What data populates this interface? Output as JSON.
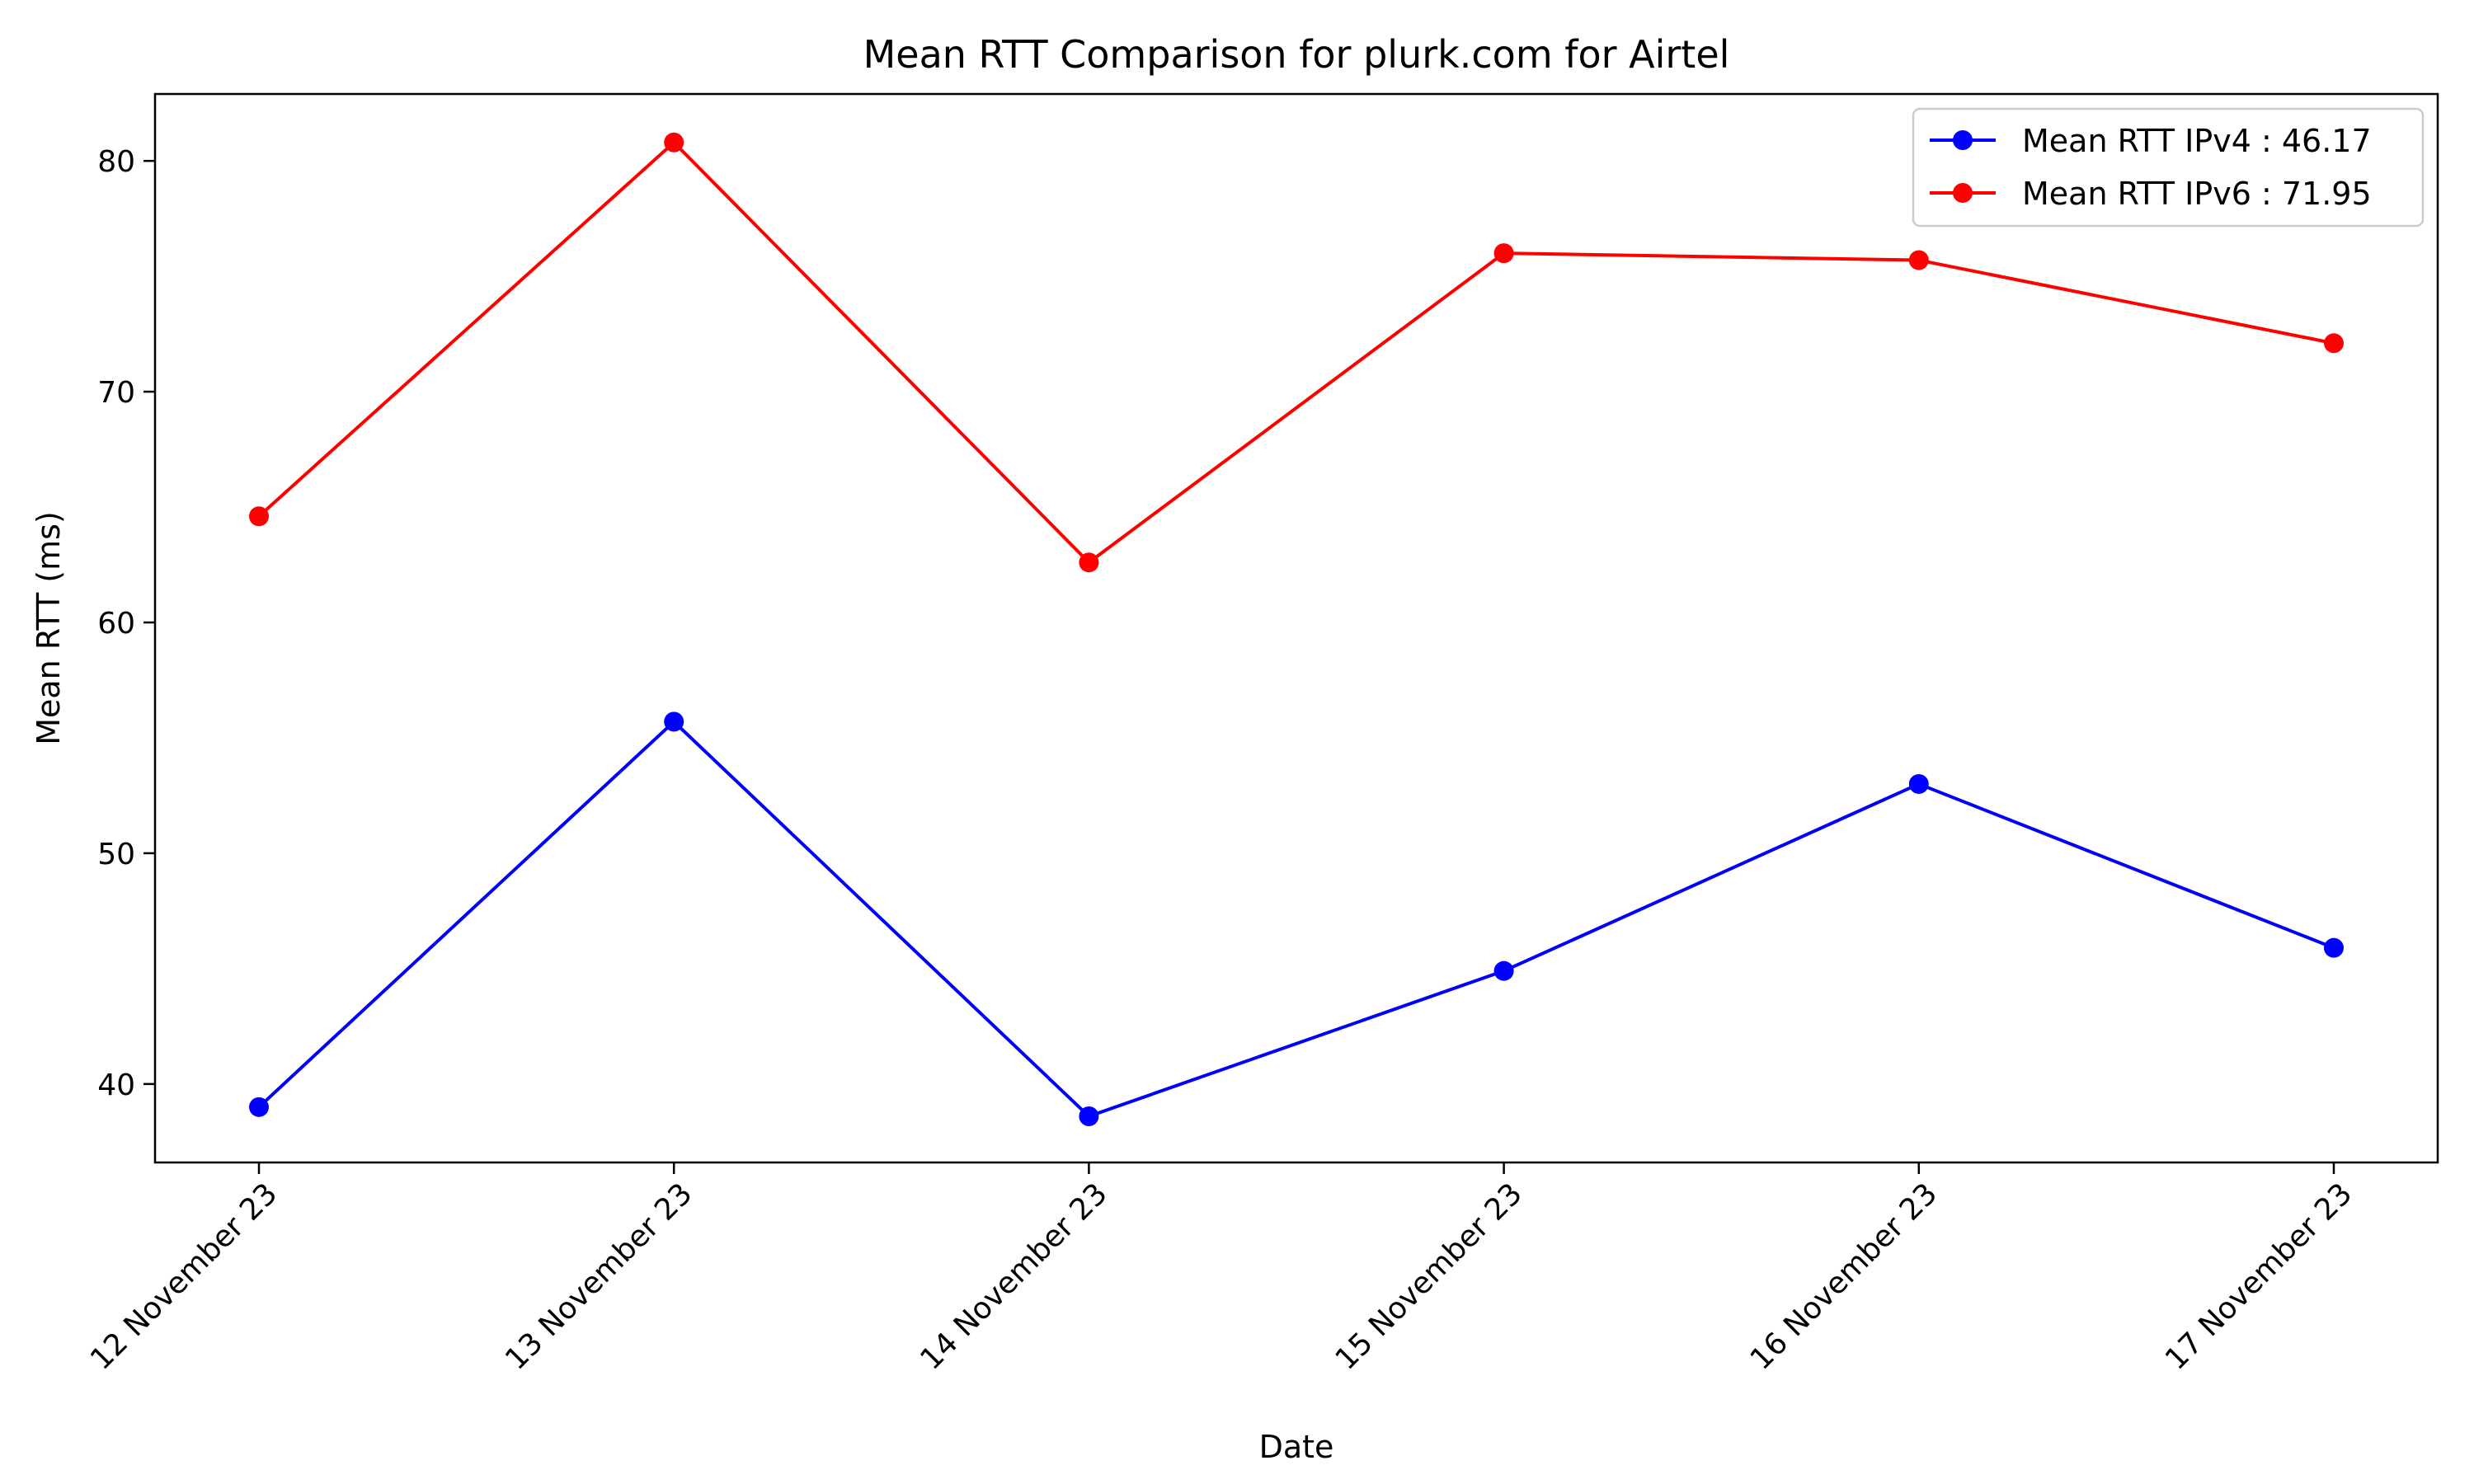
{
  "chart_data": {
    "type": "line",
    "title": "Mean RTT Comparison for plurk.com for Airtel",
    "xlabel": "Date",
    "ylabel": "Mean RTT (ms)",
    "categories": [
      "12 November 23",
      "13 November 23",
      "14 November 23",
      "15 November 23",
      "16 November 23",
      "17 November 23"
    ],
    "ylim": [
      36.6,
      82.9
    ],
    "yticks": [
      40,
      50,
      60,
      70,
      80
    ],
    "grid": false,
    "legend_position": "top-right",
    "series": [
      {
        "name": "Mean RTT IPv4 : 46.17",
        "color": "#0000ff",
        "marker": "circle",
        "values": [
          39.0,
          55.7,
          38.6,
          44.9,
          53.0,
          45.9
        ]
      },
      {
        "name": "Mean RTT IPv6 : 71.95",
        "color": "#ff0000",
        "marker": "circle",
        "values": [
          64.6,
          80.8,
          62.6,
          76.0,
          75.7,
          72.1
        ]
      }
    ]
  }
}
